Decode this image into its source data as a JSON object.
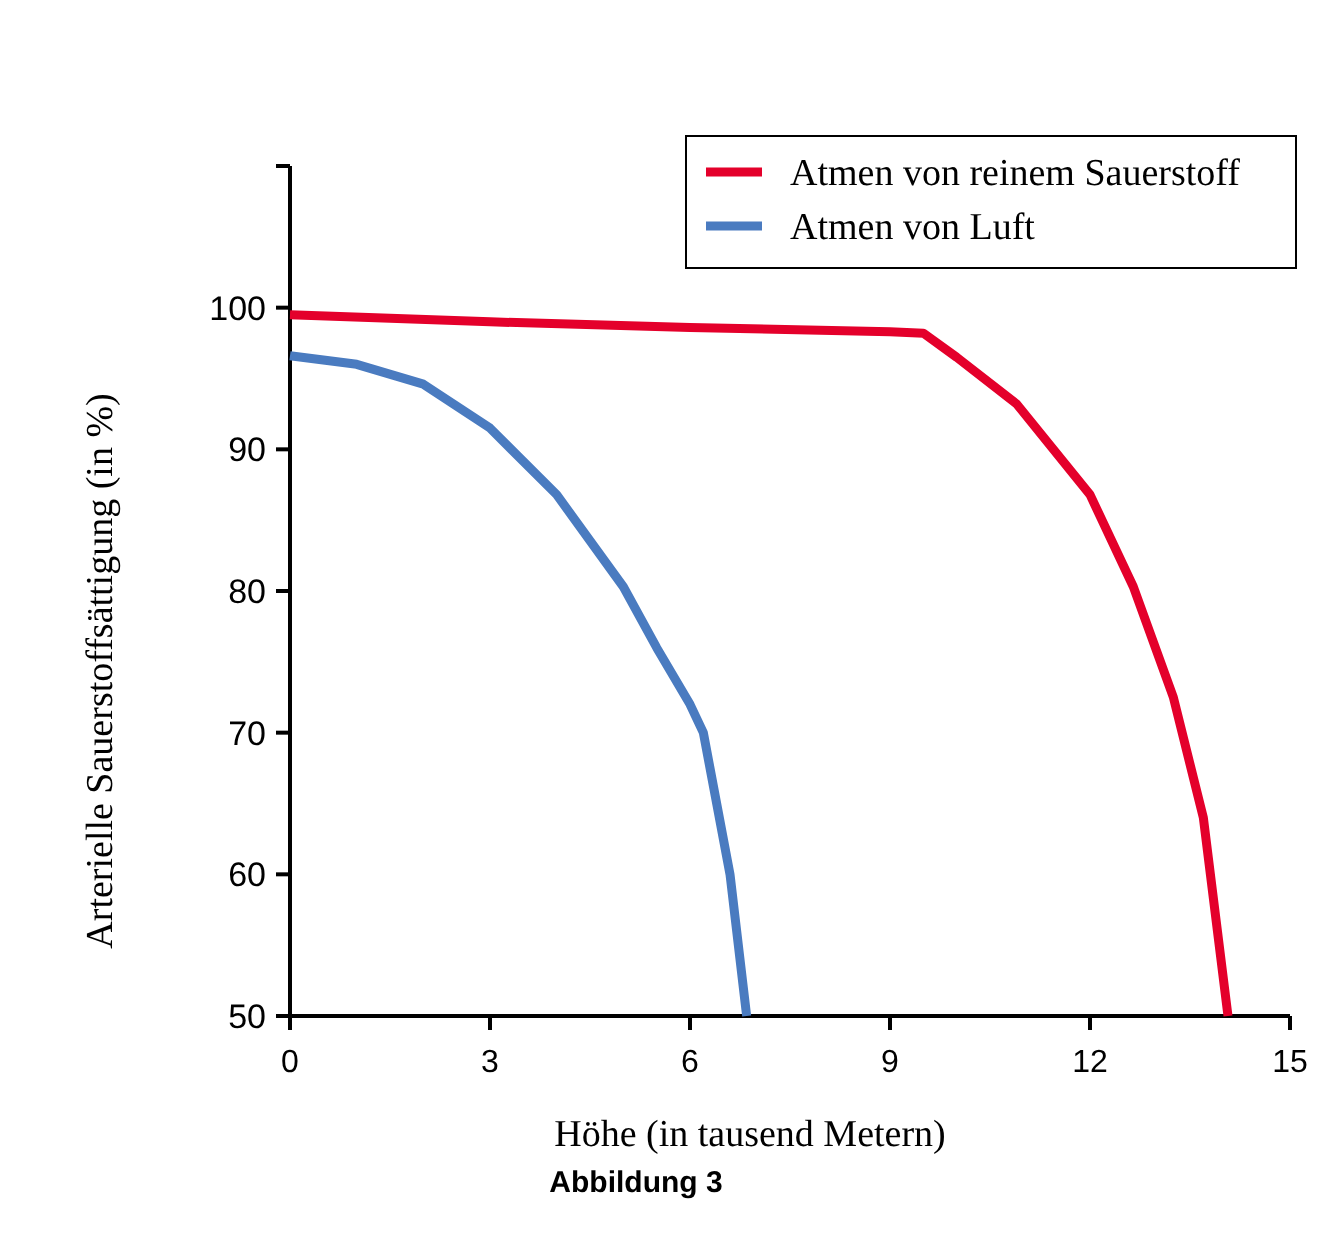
{
  "chart_data": {
    "type": "line",
    "xlabel": "Höhe (in tausend Metern)",
    "ylabel": "Arterielle Sauerstoffsättigung (in %)",
    "annotations": [
      "Abbildung 3"
    ],
    "xlim": [
      0,
      15
    ],
    "xticks": [
      0,
      3,
      6,
      9,
      12,
      15
    ],
    "ylim": [
      50,
      110
    ],
    "yticks": [
      50,
      60,
      70,
      80,
      90,
      100,
      {
        "value": 110,
        "label": null
      }
    ],
    "grid": false,
    "legend": "top right",
    "marker": "none",
    "line_style": "solid",
    "series": [
      {
        "name": "Atmen von reinem Sauerstoff",
        "color": "#e4002b",
        "x": [
          0,
          3,
          6,
          9,
          9.5,
          10,
          10.9,
          12,
          12.65,
          13.25,
          13.7,
          14.07
        ],
        "values": [
          99.5,
          99,
          98.6,
          98.3,
          98.2,
          96.5,
          93.2,
          86.8,
          80.3,
          72.5,
          64,
          50
        ]
      },
      {
        "name": "Atmen von Luft",
        "color": "#4a7bc0",
        "x": [
          0,
          1,
          2,
          3,
          4,
          5,
          5.5,
          6,
          6.2,
          6.6,
          6.85
        ],
        "values": [
          96.6,
          96,
          94.6,
          91.5,
          86.8,
          80.3,
          76,
          72,
          70,
          60,
          50
        ]
      }
    ]
  }
}
